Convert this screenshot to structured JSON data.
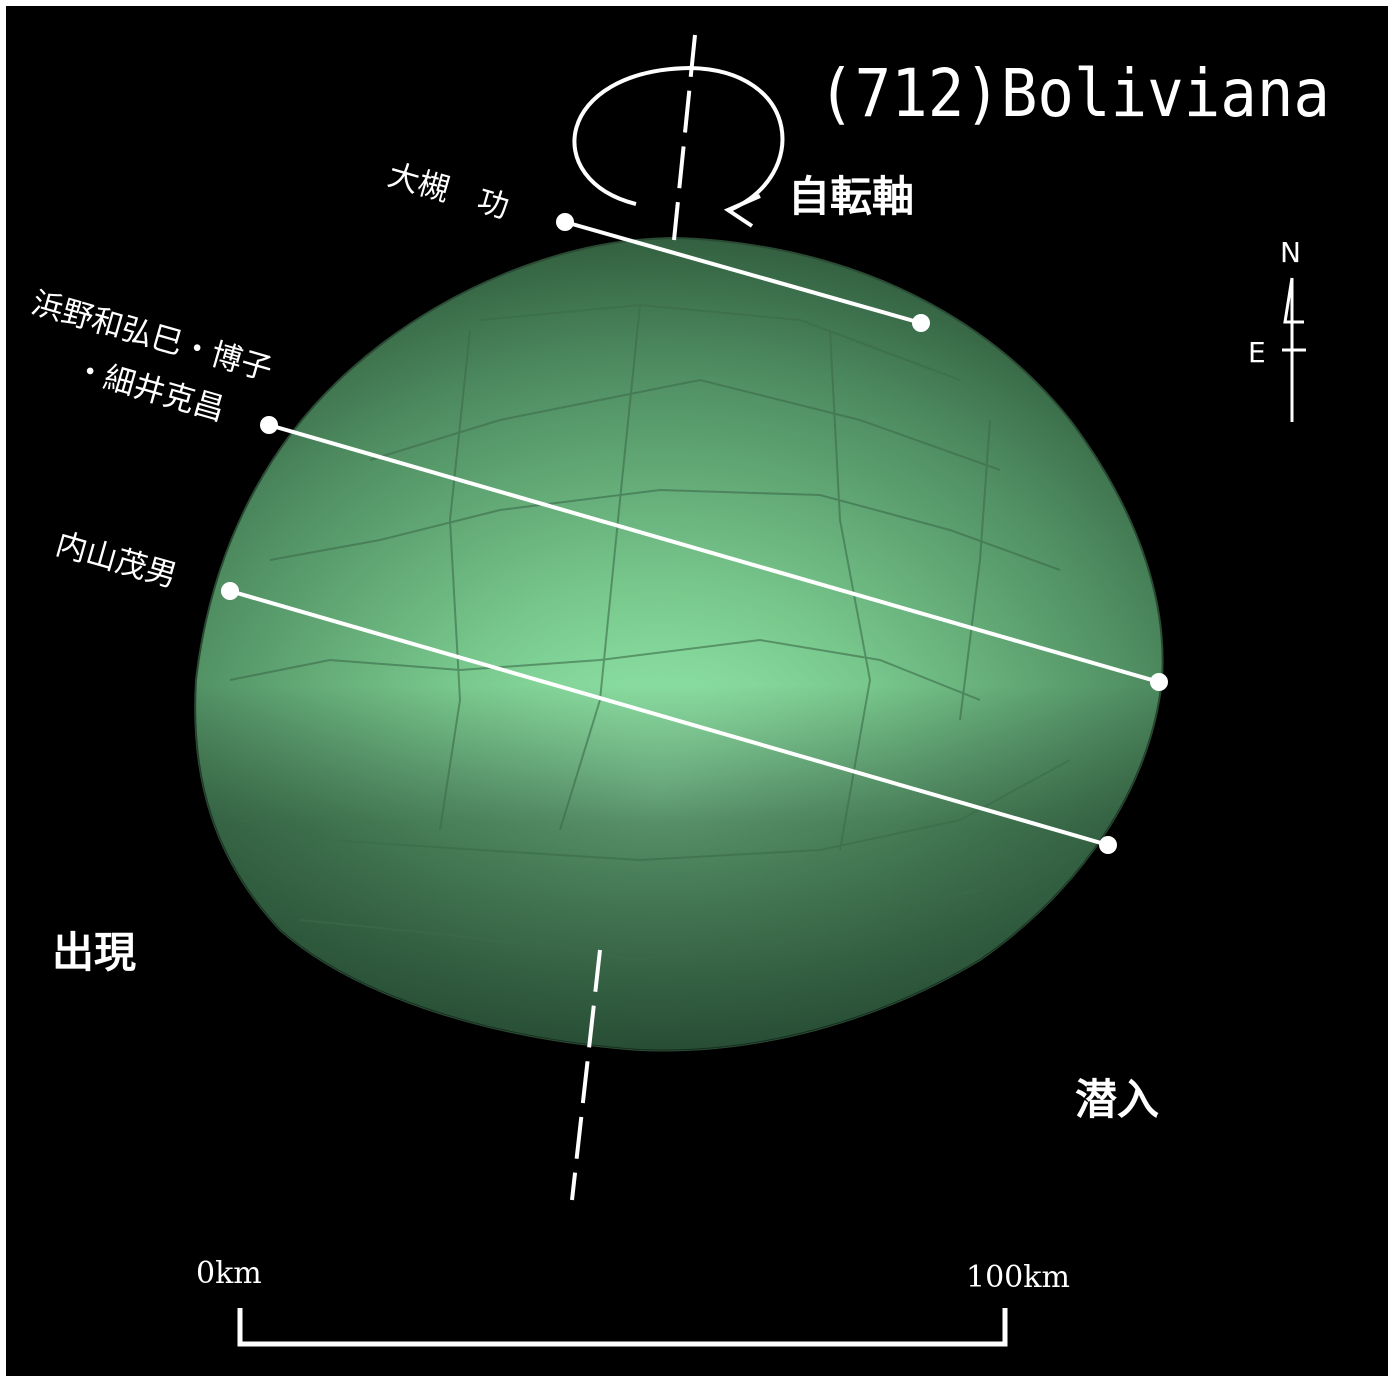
{
  "title": "(712)Boliviana",
  "rotation_axis_label": "自転軸",
  "compass": {
    "north": "N",
    "east": "E"
  },
  "observers": [
    {
      "name": "大槻　功"
    },
    {
      "name": "浜野和弘巳・博子"
    },
    {
      "name": "・細井克昌"
    },
    {
      "name": "内山茂男"
    }
  ],
  "events": {
    "appear": "出現",
    "disappear": "潜入"
  },
  "scale": {
    "start_label": "0km",
    "end_label": "100km"
  },
  "colors": {
    "background": "#000000",
    "asteroid": "#5fae78",
    "chords": "#ffffff"
  }
}
